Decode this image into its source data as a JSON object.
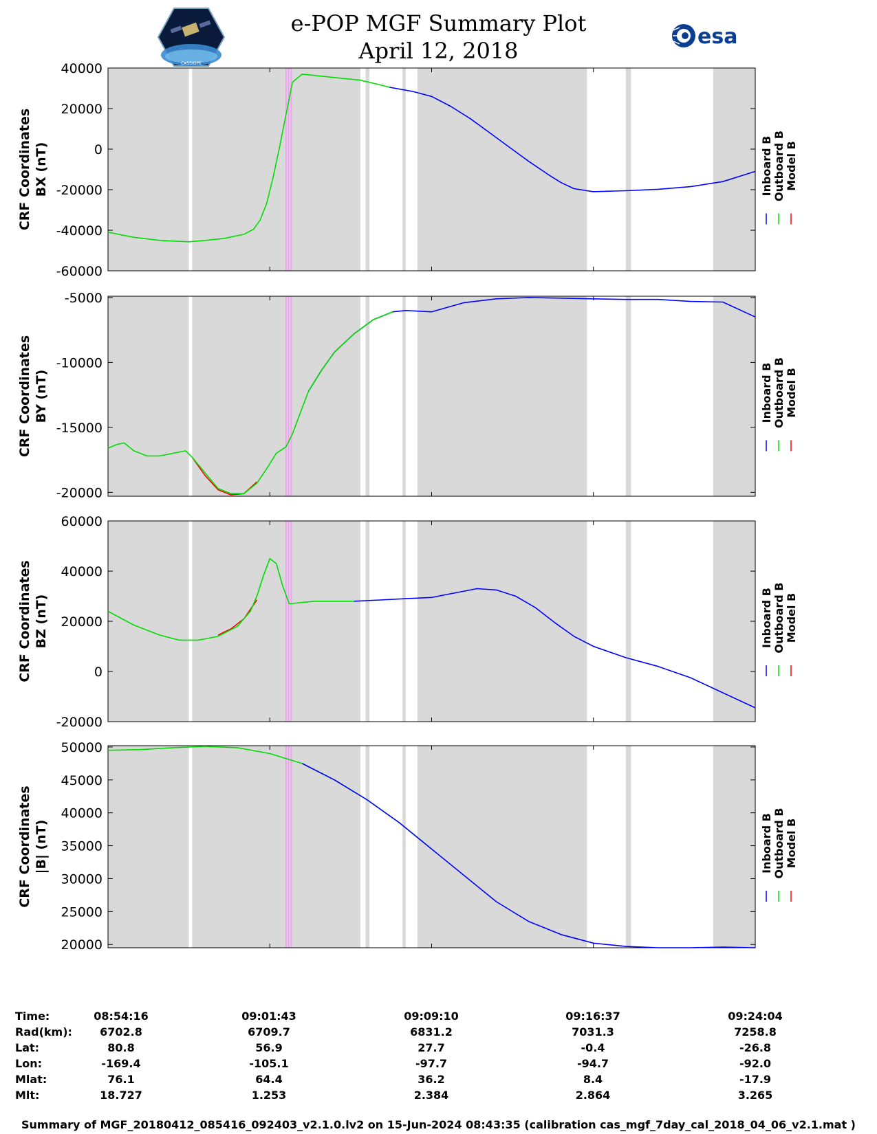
{
  "header": {
    "title_line1": "e-POP MGF Summary Plot",
    "title_line2": "April 12, 2018",
    "logo_left_caption": "CASSIOPE",
    "logo_right_text": "esa"
  },
  "colors": {
    "inboard": "#0000ff",
    "outboard": "#00dd00",
    "model": "#ff0000",
    "gray_band": "#d9d9d9",
    "magenta_marker": "#f4a0f4"
  },
  "chart_data": [
    {
      "type": "line",
      "ylabel_line1": "CRF Coordinates",
      "ylabel_line2": "BX (nT)",
      "ylim": [
        -60000,
        40000
      ],
      "yticks": [
        -60000,
        -40000,
        -20000,
        0,
        20000,
        40000
      ],
      "ytick_labels": [
        "-60000",
        "-40000",
        "-20000",
        "0",
        "20000",
        "40000"
      ],
      "legend": [
        "Inboard B",
        "Outboard B",
        "Model B"
      ],
      "series": [
        {
          "name": "Outboard B",
          "color": "outboard",
          "x": [
            0,
            0.04,
            0.08,
            0.11,
            0.125,
            0.15,
            0.18,
            0.21,
            0.225,
            0.235,
            0.245,
            0.255,
            0.265,
            0.275,
            0.285,
            0.3,
            0.33,
            0.36,
            0.39,
            0.41,
            0.43,
            0.435
          ],
          "y": [
            -41000,
            -43500,
            -45000,
            -45500,
            -45700,
            -45000,
            -44000,
            -42000,
            -39500,
            -35000,
            -27000,
            -14000,
            1000,
            17000,
            33000,
            37000,
            36000,
            35000,
            34000,
            32500,
            31000,
            30500
          ]
        },
        {
          "name": "Inboard B",
          "color": "inboard",
          "x": [
            0.435,
            0.47,
            0.5,
            0.53,
            0.56,
            0.59,
            0.62,
            0.65,
            0.68,
            0.7,
            0.72,
            0.75,
            0.8,
            0.85,
            0.9,
            0.95,
            1.0
          ],
          "y": [
            30500,
            28500,
            26000,
            21000,
            15000,
            8000,
            1000,
            -6000,
            -12500,
            -16500,
            -19500,
            -21000,
            -20500,
            -19800,
            -18500,
            -16000,
            -11000
          ]
        }
      ]
    },
    {
      "type": "line",
      "ylabel_line1": "CRF Coordinates",
      "ylabel_line2": "BY (nT)",
      "ylim": [
        -20300,
        -4900
      ],
      "yticks": [
        -20000,
        -15000,
        -10000,
        -5000
      ],
      "ytick_labels": [
        "-20000",
        "-15000",
        "-10000",
        "-5000"
      ],
      "legend": [
        "Inboard B",
        "Outboard B",
        "Model B"
      ],
      "series": [
        {
          "name": "Model B",
          "color": "model",
          "x": [
            0.13,
            0.15,
            0.17,
            0.19,
            0.21,
            0.23
          ],
          "y": [
            -17300,
            -18700,
            -19800,
            -20200,
            -20100,
            -19200
          ]
        },
        {
          "name": "Outboard B",
          "color": "outboard",
          "x": [
            0,
            0.015,
            0.025,
            0.04,
            0.06,
            0.08,
            0.1,
            0.12,
            0.13,
            0.15,
            0.17,
            0.19,
            0.21,
            0.23,
            0.245,
            0.26,
            0.275,
            0.285,
            0.3,
            0.31
          ],
          "y": [
            -16600,
            -16300,
            -16200,
            -16800,
            -17200,
            -17200,
            -17000,
            -16800,
            -17300,
            -18500,
            -19700,
            -20100,
            -20100,
            -19300,
            -18200,
            -17000,
            -16500,
            -15500,
            -13500,
            -12200
          ]
        },
        {
          "name": "Inboard B",
          "color": "inboard",
          "x": [
            0.31,
            0.33,
            0.35,
            0.38,
            0.41,
            0.44,
            0.46,
            0.5,
            0.55,
            0.6,
            0.65,
            0.7,
            0.75,
            0.8,
            0.85,
            0.9,
            0.95,
            1.0
          ],
          "y": [
            -12200,
            -10600,
            -9200,
            -7800,
            -6700,
            -6100,
            -6000,
            -6100,
            -5400,
            -5100,
            -5000,
            -5050,
            -5100,
            -5150,
            -5150,
            -5300,
            -5350,
            -6500
          ]
        },
        {
          "name": "Outboard B",
          "color": "outboard",
          "x": [
            0.31,
            0.33,
            0.35,
            0.38,
            0.41,
            0.44
          ],
          "y": [
            -12200,
            -10600,
            -9200,
            -7800,
            -6700,
            -6100
          ]
        }
      ]
    },
    {
      "type": "line",
      "ylabel_line1": "CRF Coordinates",
      "ylabel_line2": "BZ (nT)",
      "ylim": [
        -20000,
        60000
      ],
      "yticks": [
        -20000,
        0,
        20000,
        40000,
        60000
      ],
      "ytick_labels": [
        "-20000",
        "0",
        "20000",
        "40000",
        "60000"
      ],
      "legend": [
        "Inboard B",
        "Outboard B",
        "Model B"
      ],
      "series": [
        {
          "name": "Model B",
          "color": "model",
          "x": [
            0.17,
            0.19,
            0.21,
            0.23
          ],
          "y": [
            14500,
            17000,
            21000,
            28500
          ]
        },
        {
          "name": "Outboard B",
          "color": "outboard",
          "x": [
            0,
            0.04,
            0.08,
            0.11,
            0.14,
            0.17,
            0.2,
            0.22,
            0.23,
            0.24,
            0.25,
            0.26,
            0.27,
            0.28,
            0.3,
            0.32,
            0.34,
            0.38
          ],
          "y": [
            24000,
            18500,
            14500,
            12500,
            12500,
            14000,
            18000,
            24000,
            30000,
            38000,
            45000,
            43000,
            34000,
            27000,
            27500,
            28000,
            28000,
            28000
          ]
        },
        {
          "name": "Inboard B",
          "color": "inboard",
          "x": [
            0.38,
            0.42,
            0.46,
            0.5,
            0.54,
            0.57,
            0.6,
            0.63,
            0.66,
            0.69,
            0.72,
            0.75,
            0.8,
            0.85,
            0.9,
            0.95,
            1.0
          ],
          "y": [
            28000,
            28500,
            29000,
            29500,
            31500,
            33000,
            32500,
            30000,
            25500,
            19500,
            14000,
            10000,
            5500,
            2000,
            -2500,
            -8500,
            -14500
          ]
        }
      ]
    },
    {
      "type": "line",
      "ylabel_line1": "CRF Coordinates",
      "ylabel_line2": "|B| (nT)",
      "ylim": [
        19500,
        50200
      ],
      "yticks": [
        20000,
        25000,
        30000,
        35000,
        40000,
        45000,
        50000
      ],
      "ytick_labels": [
        "20000",
        "25000",
        "30000",
        "35000",
        "40000",
        "45000",
        "50000"
      ],
      "legend": [
        "Inboard B",
        "Outboard B",
        "Model B"
      ],
      "series": [
        {
          "name": "Outboard B",
          "color": "outboard",
          "x": [
            0,
            0.05,
            0.1,
            0.15,
            0.2,
            0.25,
            0.3,
            0.35,
            0.4,
            0.45,
            0.5
          ],
          "y": [
            49500,
            49600,
            49900,
            50100,
            49900,
            49000,
            47500,
            45000,
            42000,
            38500,
            34500
          ]
        },
        {
          "name": "Inboard B",
          "color": "inboard",
          "x": [
            0.3,
            0.35,
            0.4,
            0.45,
            0.5,
            0.55,
            0.6,
            0.65,
            0.7,
            0.75,
            0.8,
            0.85,
            0.9,
            0.95,
            1.0
          ],
          "y": [
            47500,
            45000,
            42000,
            38500,
            34500,
            30500,
            26500,
            23500,
            21500,
            20200,
            19700,
            19500,
            19500,
            19600,
            19500
          ]
        }
      ]
    }
  ],
  "gray_bands": [
    [
      0.0,
      0.125
    ],
    [
      0.13,
      0.39
    ],
    [
      0.398,
      0.404
    ],
    [
      0.455,
      0.46
    ],
    [
      0.478,
      0.74
    ],
    [
      0.8,
      0.808
    ],
    [
      0.935,
      1.0
    ]
  ],
  "magenta_markers": [
    0.275,
    0.279,
    0.283
  ],
  "footer_table": {
    "row_labels": [
      "Time:",
      "Rad(km):",
      "Lat:",
      "Lon:",
      "Mlat:",
      "Mlt:"
    ],
    "columns": [
      [
        "08:54:16",
        "6702.8",
        "80.8",
        "-169.4",
        "76.1",
        "18.727"
      ],
      [
        "09:01:43",
        "6709.7",
        "56.9",
        "-105.1",
        "64.4",
        "1.253"
      ],
      [
        "09:09:10",
        "6831.2",
        "27.7",
        "-97.7",
        "36.2",
        "2.384"
      ],
      [
        "09:16:37",
        "7031.3",
        "-0.4",
        "-94.7",
        "8.4",
        "2.864"
      ],
      [
        "09:24:04",
        "7258.8",
        "-26.8",
        "-92.0",
        "-17.9",
        "3.265"
      ]
    ]
  },
  "footer": {
    "text": "Summary of MGF_20180412_085416_092403_v2.1.0.lv2 on 15-Jun-2024 08:43:35 (calibration cas_mgf_7day_cal_2018_04_06_v2.1.mat )"
  }
}
